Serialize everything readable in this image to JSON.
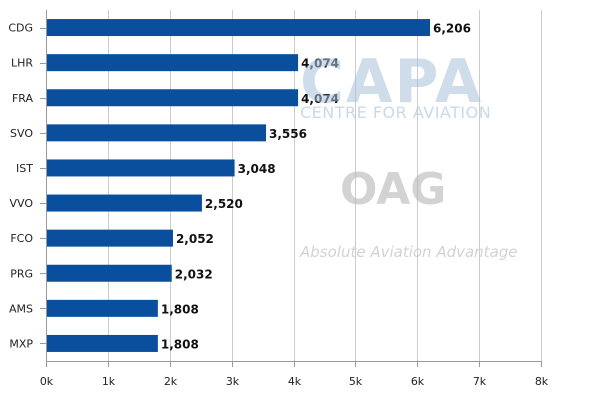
{
  "chart_data": {
    "type": "bar",
    "orientation": "horizontal",
    "categories": [
      "CDG",
      "LHR",
      "FRA",
      "SVO",
      "IST",
      "VVO",
      "FCO",
      "PRG",
      "AMS",
      "MXP"
    ],
    "values": [
      6206,
      4074,
      4074,
      3556,
      3048,
      2520,
      2052,
      2032,
      1808,
      1808
    ],
    "value_labels": [
      "6,206",
      "4,074",
      "4,074",
      "3,556",
      "3,048",
      "2,520",
      "2,052",
      "2,032",
      "1,808",
      "1,808"
    ],
    "x_ticks": [
      0,
      1000,
      2000,
      3000,
      4000,
      5000,
      6000,
      7000,
      8000
    ],
    "x_tick_labels": [
      "0k",
      "1k",
      "2k",
      "3k",
      "4k",
      "5k",
      "6k",
      "7k",
      "8k"
    ],
    "xlim": [
      0,
      8000
    ],
    "title": "",
    "xlabel": "",
    "ylabel": "",
    "grid": "vertical",
    "bar_color": "#0a4f9e"
  },
  "watermarks": {
    "capa": "CAPA",
    "capa_sub": "CENTRE FOR AVIATION",
    "oag": "OAG",
    "oag_tagline": "Absolute Aviation Advantage"
  }
}
